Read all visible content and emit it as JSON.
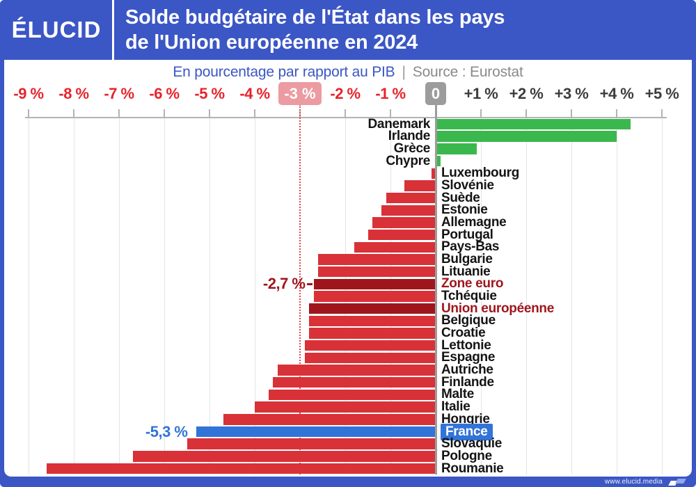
{
  "header": {
    "logo": "ÉLUCID",
    "title_line1": "Solde budgétaire de l'État dans les pays",
    "title_line2": "de l'Union européenne en 2024"
  },
  "subtitle": {
    "left": "En pourcentage par rapport au PIB",
    "separator": "|",
    "right": "Source : Eurostat"
  },
  "footer": {
    "url": "www.elucid.media"
  },
  "colors": {
    "header_blue": "#3b56c5",
    "positive_green": "#3bb84d",
    "negative_red": "#d93138",
    "aggregate_darkred": "#9e161c",
    "france_blue": "#3273d8",
    "tick_negative": "#e7232b",
    "tick_positive": "#3c3c3c",
    "badge_pink": "#eb9ba1",
    "badge_gray": "#9c9c9c",
    "grid": "#e4e4e4",
    "axis": "#b3b3b3",
    "zero_line": "#9c9c9c",
    "dotted_line": "#e2444a",
    "label_black": "#141414"
  },
  "chart_data": {
    "type": "bar",
    "orientation": "horizontal",
    "title": "Solde budgétaire de l'État dans les pays de l'Union européenne en 2024",
    "subtitle": "En pourcentage par rapport au PIB",
    "source": "Source : Eurostat",
    "value_unit": "% du PIB",
    "xlim": [
      -9.5,
      5.5
    ],
    "grid": true,
    "x_ticks": [
      {
        "v": -9,
        "label": "-9 %",
        "kind": "negative"
      },
      {
        "v": -8,
        "label": "-8 %",
        "kind": "negative"
      },
      {
        "v": -7,
        "label": "-7 %",
        "kind": "negative"
      },
      {
        "v": -6,
        "label": "-6 %",
        "kind": "negative"
      },
      {
        "v": -5,
        "label": "-5 %",
        "kind": "negative"
      },
      {
        "v": -4,
        "label": "-4 %",
        "kind": "negative"
      },
      {
        "v": -3,
        "label": "-3 %",
        "kind": "negative-badge"
      },
      {
        "v": -2,
        "label": "-2 %",
        "kind": "negative"
      },
      {
        "v": -1,
        "label": "-1 %",
        "kind": "negative"
      },
      {
        "v": 0,
        "label": "0",
        "kind": "zero-badge"
      },
      {
        "v": 1,
        "label": "+1 %",
        "kind": "positive"
      },
      {
        "v": 2,
        "label": "+2 %",
        "kind": "positive"
      },
      {
        "v": 3,
        "label": "+3 %",
        "kind": "positive"
      },
      {
        "v": 4,
        "label": "+4 %",
        "kind": "positive"
      },
      {
        "v": 5,
        "label": "+5 %",
        "kind": "positive"
      }
    ],
    "reference_lines": [
      {
        "v": -3,
        "style": "dotted-red"
      },
      {
        "v": 0,
        "style": "solid-gray"
      }
    ],
    "rows": [
      {
        "label": "Danemark",
        "value": 4.3,
        "color": "green"
      },
      {
        "label": "Irlande",
        "value": 4.0,
        "color": "green"
      },
      {
        "label": "Grèce",
        "value": 0.9,
        "color": "green"
      },
      {
        "label": "Chypre",
        "value": 0.1,
        "color": "green"
      },
      {
        "label": "Luxembourg",
        "value": -0.1,
        "color": "red"
      },
      {
        "label": "Slovénie",
        "value": -0.7,
        "color": "red"
      },
      {
        "label": "Suède",
        "value": -1.1,
        "color": "red"
      },
      {
        "label": "Estonie",
        "value": -1.2,
        "color": "red"
      },
      {
        "label": "Allemagne",
        "value": -1.4,
        "color": "red"
      },
      {
        "label": "Portugal",
        "value": -1.5,
        "color": "red"
      },
      {
        "label": "Pays-Bas",
        "value": -1.8,
        "color": "red"
      },
      {
        "label": "Bulgarie",
        "value": -2.6,
        "color": "red"
      },
      {
        "label": "Lituanie",
        "value": -2.6,
        "color": "red"
      },
      {
        "label": "Zone euro",
        "value": -2.7,
        "color": "darkred",
        "annotation": "-2,7 %",
        "connector": true
      },
      {
        "label": "Tchéquie",
        "value": -2.7,
        "color": "red"
      },
      {
        "label": "Union européenne",
        "value": -2.8,
        "color": "darkred"
      },
      {
        "label": "Belgique",
        "value": -2.8,
        "color": "red"
      },
      {
        "label": "Croatie",
        "value": -2.8,
        "color": "red"
      },
      {
        "label": "Lettonie",
        "value": -2.9,
        "color": "red"
      },
      {
        "label": "Espagne",
        "value": -2.9,
        "color": "red"
      },
      {
        "label": "Autriche",
        "value": -3.5,
        "color": "red"
      },
      {
        "label": "Finlande",
        "value": -3.6,
        "color": "red"
      },
      {
        "label": "Malte",
        "value": -3.7,
        "color": "red"
      },
      {
        "label": "Italie",
        "value": -4.0,
        "color": "red"
      },
      {
        "label": "Hongrie",
        "value": -4.7,
        "color": "red"
      },
      {
        "label": "France",
        "value": -5.3,
        "color": "blue",
        "annotation": "-5,3 %",
        "highlight_label": true
      },
      {
        "label": "Slovaquie",
        "value": -5.5,
        "color": "red"
      },
      {
        "label": "Pologne",
        "value": -6.7,
        "color": "red"
      },
      {
        "label": "Roumanie",
        "value": -8.6,
        "color": "red"
      }
    ]
  }
}
